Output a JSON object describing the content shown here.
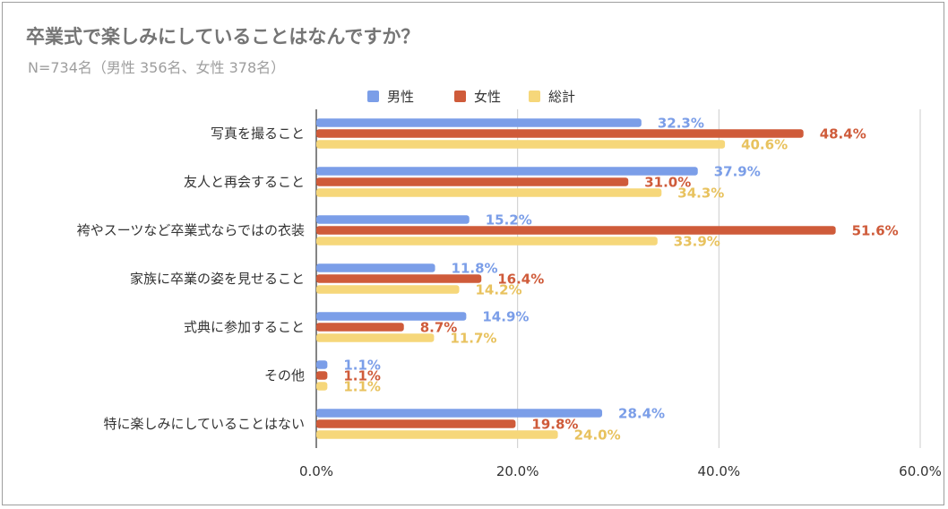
{
  "chart_data": {
    "type": "bar",
    "orientation": "horizontal",
    "title": "卒業式で楽しみにしていることはなんですか？",
    "subtitle": "N=734名（男性 356名、女性 378名）",
    "categories": [
      "写真を撮ること",
      "友人と再会すること",
      "袴やスーツなど卒業式ならではの衣装",
      "家族に卒業の姿を見せること",
      "式典に参加すること",
      "その他",
      "特に楽しみにしていることはない"
    ],
    "series": [
      {
        "name": "男性",
        "color": "#7b9ee8",
        "values": [
          32.3,
          37.9,
          15.2,
          11.8,
          14.9,
          1.1,
          28.4
        ],
        "labels": [
          "32.3%",
          "37.9%",
          "15.2%",
          "11.8%",
          "14.9%",
          "1.1%",
          "28.4%"
        ]
      },
      {
        "name": "女性",
        "color": "#cf5b3a",
        "values": [
          48.4,
          31.0,
          51.6,
          16.4,
          8.7,
          1.1,
          19.8
        ],
        "labels": [
          "48.4%",
          "31.0%",
          "51.6%",
          "16.4%",
          "8.7%",
          "1.1%",
          "19.8%"
        ]
      },
      {
        "name": "総計",
        "color": "#f6d77a",
        "values": [
          40.6,
          34.3,
          33.9,
          14.2,
          11.7,
          1.1,
          24.0
        ],
        "labels": [
          "40.6%",
          "34.3%",
          "33.9%",
          "14.2%",
          "11.7%",
          "1.1%",
          "24.0%"
        ]
      }
    ],
    "xlim": [
      0,
      60
    ],
    "xticks": [
      0,
      20,
      40,
      60
    ],
    "xtick_labels": [
      "0.0%",
      "20.0%",
      "40.0%",
      "60.0%"
    ],
    "grid": true,
    "legend_position": "top-center"
  }
}
